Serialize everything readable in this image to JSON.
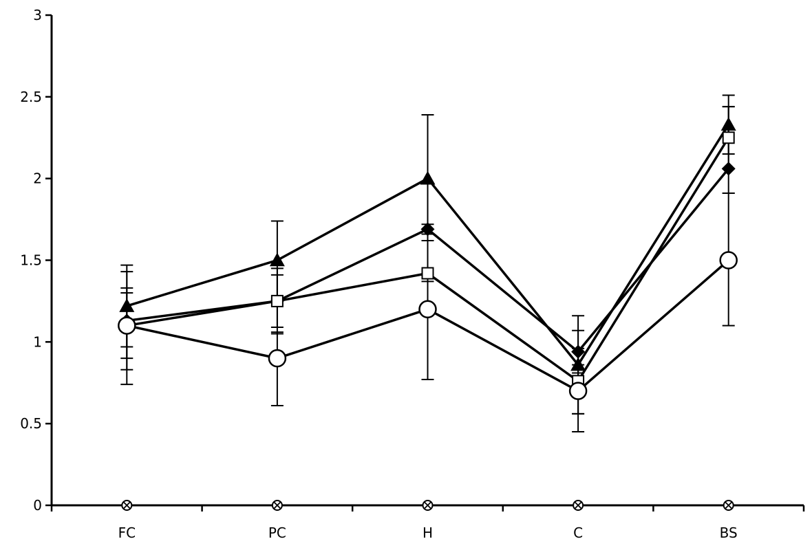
{
  "chart_data": {
    "type": "line",
    "title": "",
    "xlabel": "",
    "ylabel": "",
    "categories": [
      "FC",
      "PC",
      "H",
      "C",
      "BS"
    ],
    "ylim": [
      0,
      3
    ],
    "yticks": [
      "0",
      "0.5",
      "1",
      "1.5",
      "2",
      "2.5",
      "3"
    ],
    "grid": false,
    "legend": "none",
    "series": [
      {
        "marker": "triangle-filled",
        "values": [
          1.22,
          1.5,
          2.0,
          0.86,
          2.33
        ],
        "err_upper": [
          1.47,
          1.74,
          2.39,
          1.16,
          2.51
        ],
        "err_lower": [
          0.97,
          1.26,
          1.62,
          0.56,
          2.15
        ]
      },
      {
        "marker": "diamond-filled",
        "values": [
          1.13,
          1.25,
          1.69,
          0.94,
          2.06
        ],
        "err_upper": [
          1.43,
          1.45,
          1.72,
          1.07,
          2.44
        ],
        "err_lower": [
          0.83,
          1.05,
          1.66,
          0.81,
          1.91
        ]
      },
      {
        "marker": "square-open",
        "values": [
          1.1,
          1.25,
          1.42,
          0.76,
          2.25
        ],
        "err_upper": [
          1.3,
          1.41,
          1.62,
          0.96,
          2.44
        ],
        "err_lower": [
          0.9,
          1.09,
          1.22,
          0.56,
          2.06
        ]
      },
      {
        "marker": "circle-open",
        "values": [
          1.1,
          0.9,
          1.2,
          0.7,
          1.5
        ],
        "err_upper": [
          1.33,
          1.06,
          1.37,
          0.86,
          1.91
        ],
        "err_lower": [
          0.74,
          0.61,
          0.77,
          0.45,
          1.1
        ]
      },
      {
        "marker": "x-open-circle",
        "values": [
          0,
          0,
          0,
          0,
          0
        ]
      }
    ]
  }
}
